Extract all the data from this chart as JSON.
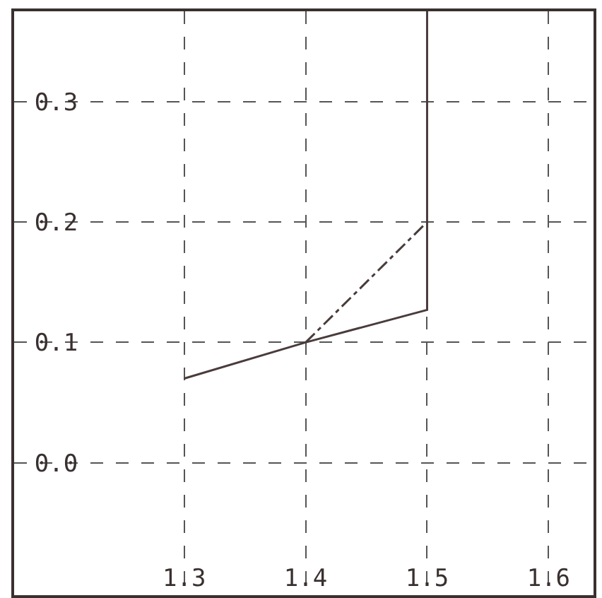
{
  "chart_data": {
    "type": "line",
    "series": [
      {
        "color": "#4a3c3c",
        "x": [
          1.3,
          1.4,
          1.5,
          1.5
        ],
        "values": [
          0.07,
          0.1,
          0.127,
          0.375
        ],
        "line_style": "solid"
      },
      {
        "color": "#4a3c3c",
        "x": [
          1.4,
          1.5
        ],
        "values": [
          0.1,
          0.2
        ],
        "line_style": "dashdot"
      }
    ],
    "xlim": [
      1.16,
      1.637
    ],
    "ylim": [
      -0.11,
      0.375
    ],
    "xticks": [
      {
        "value": 1.3,
        "label": "1.3"
      },
      {
        "value": 1.4,
        "label": "1.4"
      },
      {
        "value": 1.5,
        "label": "1.5"
      },
      {
        "value": 1.6,
        "label": "1.6"
      }
    ],
    "yticks": [
      {
        "value": 0.0,
        "label": "0.0"
      },
      {
        "value": 0.1,
        "label": "0.1"
      },
      {
        "value": 0.2,
        "label": "0.2"
      },
      {
        "value": 0.3,
        "label": "0.3"
      }
    ],
    "grid": true,
    "marker": "none"
  }
}
